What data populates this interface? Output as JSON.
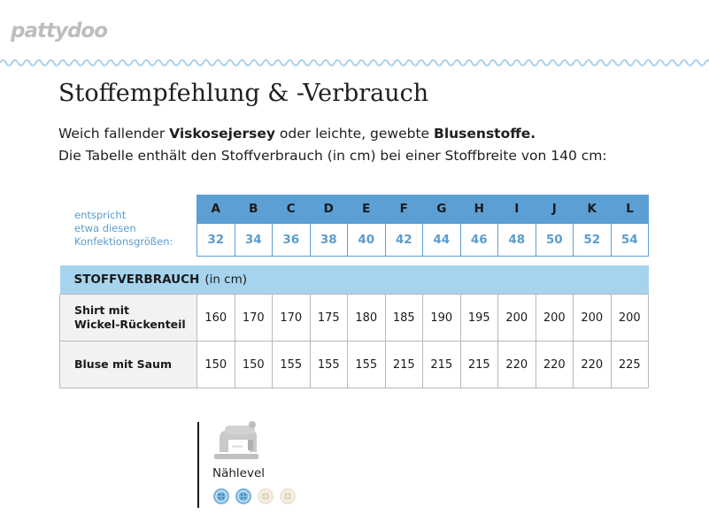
{
  "brand": {
    "logo_text": "pattydoo"
  },
  "header": {
    "title": "Stoffempfehlung & -Verbrauch"
  },
  "intro": {
    "line1_prefix": "Weich fallender ",
    "line1_bold1": "Viskosejersey",
    "line1_mid": " oder leichte, gewebte ",
    "line1_bold2": "Blusenstoffe.",
    "line2": "Die Tabelle enthält den Stoffverbrauch (in cm) bei einer Stoffbreite von 140 cm:"
  },
  "sizes": {
    "label_lines": [
      "entspricht",
      "etwa diesen",
      "Konfektionsgrößen:"
    ],
    "letters": [
      "A",
      "B",
      "C",
      "D",
      "E",
      "F",
      "G",
      "H",
      "I",
      "J",
      "K",
      "L"
    ],
    "numbers": [
      "32",
      "34",
      "36",
      "38",
      "40",
      "42",
      "44",
      "46",
      "48",
      "50",
      "52",
      "54"
    ]
  },
  "fabric": {
    "header_bold": "STOFFVERBRAUCH",
    "header_unit": "(in cm)",
    "rows": [
      {
        "label_lines": [
          "Shirt mit",
          "Wickel-Rückenteil"
        ],
        "values": [
          "160",
          "170",
          "170",
          "175",
          "180",
          "185",
          "190",
          "195",
          "200",
          "200",
          "200",
          "200"
        ]
      },
      {
        "label_lines": [
          "Bluse mit Saum"
        ],
        "values": [
          "150",
          "150",
          "155",
          "155",
          "155",
          "215",
          "215",
          "215",
          "220",
          "220",
          "220",
          "225"
        ]
      }
    ]
  },
  "level": {
    "label": "Nählevel",
    "icon": "sewing-machine-icon",
    "filled_count": 2,
    "total": 4,
    "colors": {
      "filled": "#79b5e0",
      "empty": "#eee4d2"
    }
  }
}
